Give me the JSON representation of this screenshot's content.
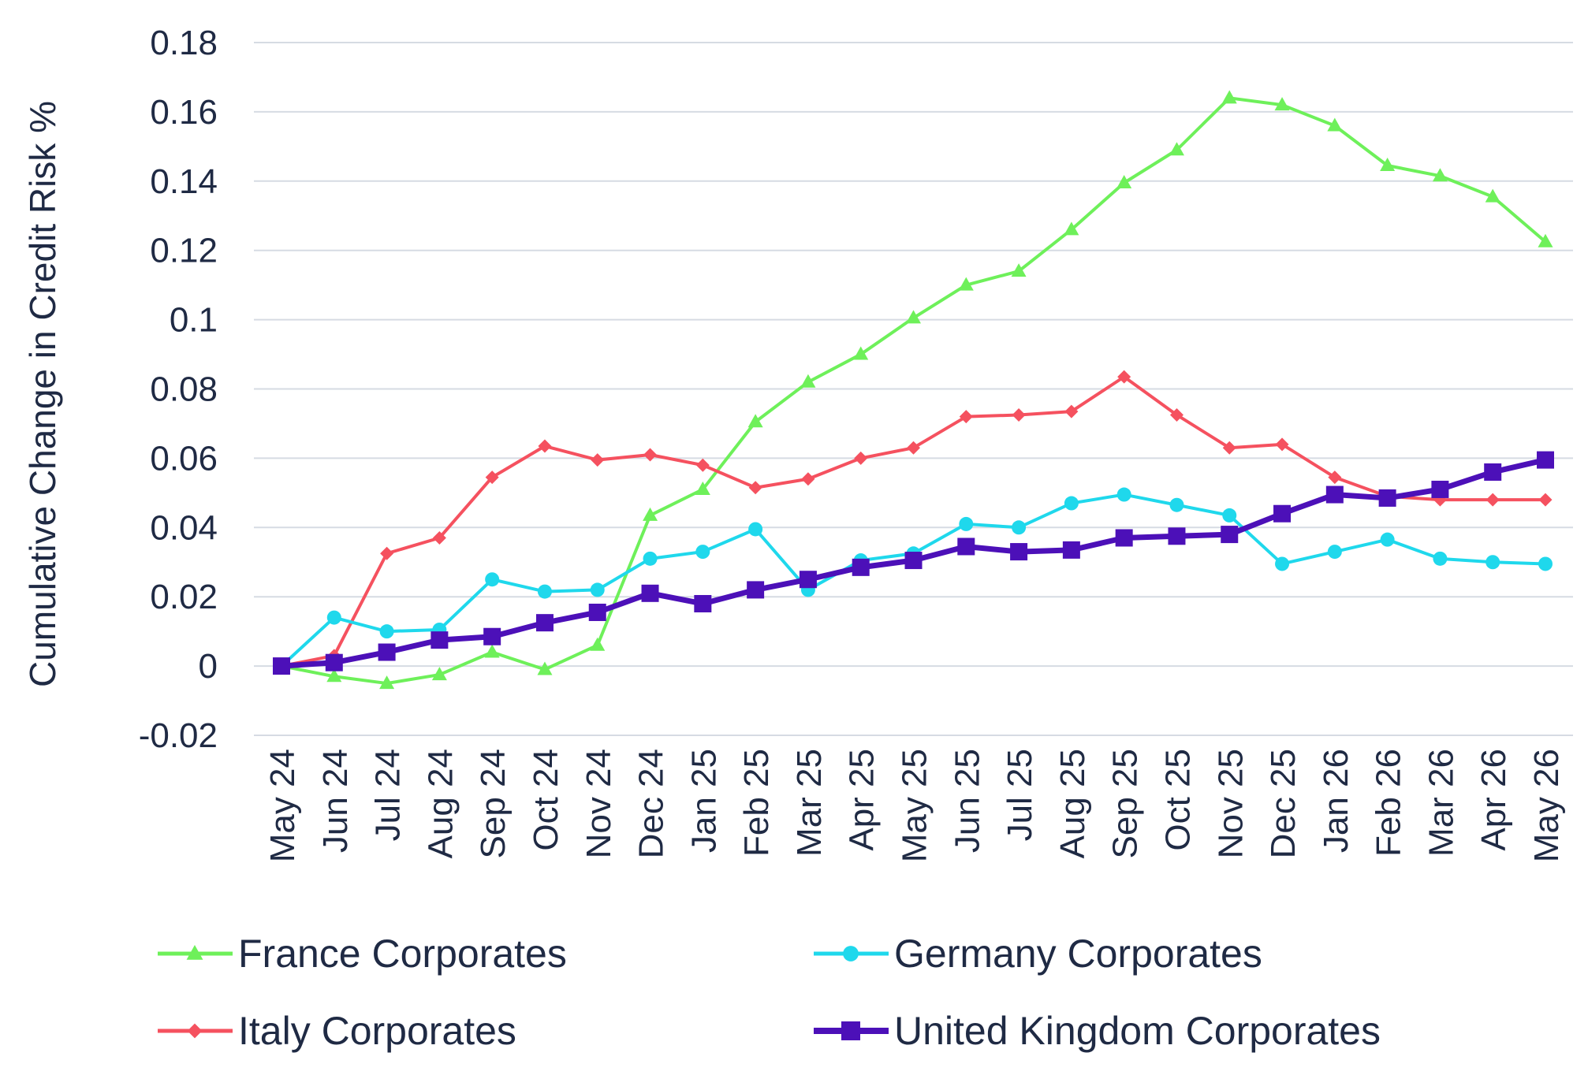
{
  "chart_data": {
    "type": "line",
    "title": "",
    "xlabel": "",
    "ylabel": "Cumulative Change in Credit Risk %",
    "ylim": [
      -0.02,
      0.18
    ],
    "yticks": [
      -0.02,
      0,
      0.02,
      0.04,
      0.06,
      0.08,
      0.1,
      0.12,
      0.14,
      0.16,
      0.18
    ],
    "ytick_labels": [
      "-0.02",
      "0",
      "0.02",
      "0.04",
      "0.06",
      "0.08",
      "0.1",
      "0.12",
      "0.14",
      "0.16",
      "0.18"
    ],
    "grid": true,
    "legend_position": "bottom",
    "categories": [
      "May 24",
      "Jun 24",
      "Jul 24",
      "Aug 24",
      "Sep 24",
      "Oct 24",
      "Nov 24",
      "Dec 24",
      "Jan 25",
      "Feb 25",
      "Mar 25",
      "Apr 25",
      "May 25",
      "Jun 25",
      "Jul 25",
      "Aug 25",
      "Sep 25",
      "Oct 25",
      "Nov 25",
      "Dec 25",
      "Jan 26",
      "Feb 26",
      "Mar 26",
      "Apr 26",
      "May 26"
    ],
    "series": [
      {
        "name": "France Corporates",
        "color": "#6ef05a",
        "marker": "triangle",
        "values": [
          0,
          -0.003,
          -0.005,
          -0.0025,
          0.004,
          -0.001,
          0.006,
          0.0435,
          0.051,
          0.0705,
          0.082,
          0.09,
          0.1005,
          0.11,
          0.114,
          0.126,
          0.1395,
          0.149,
          0.164,
          0.162,
          0.156,
          0.1445,
          0.1415,
          0.1355,
          0.1225
        ]
      },
      {
        "name": "Germany Corporates",
        "color": "#1fd8ec",
        "marker": "circle",
        "values": [
          0,
          0.014,
          0.01,
          0.0105,
          0.025,
          0.0215,
          0.022,
          0.031,
          0.033,
          0.0395,
          0.022,
          0.0305,
          0.0325,
          0.041,
          0.04,
          0.047,
          0.0495,
          0.0465,
          0.0435,
          0.0295,
          0.033,
          0.0365,
          0.031,
          0.03,
          0.0295
        ]
      },
      {
        "name": "Italy Corporates",
        "color": "#f5515f",
        "marker": "diamond",
        "values": [
          0,
          0.003,
          0.0325,
          0.037,
          0.0545,
          0.0635,
          0.0595,
          0.061,
          0.058,
          0.0515,
          0.054,
          0.06,
          0.063,
          0.072,
          0.0725,
          0.0735,
          0.0835,
          0.0725,
          0.063,
          0.064,
          0.0545,
          0.049,
          0.048,
          0.048,
          0.048
        ]
      },
      {
        "name": "United Kingdom Corporates",
        "color": "#4c10b8",
        "marker": "square",
        "values": [
          0,
          0.001,
          0.004,
          0.0075,
          0.0085,
          0.0125,
          0.0155,
          0.021,
          0.018,
          0.022,
          0.025,
          0.0285,
          0.0305,
          0.0345,
          0.033,
          0.0335,
          0.037,
          0.0375,
          0.038,
          0.044,
          0.0495,
          0.0485,
          0.051,
          0.056,
          0.0595
        ]
      }
    ]
  }
}
